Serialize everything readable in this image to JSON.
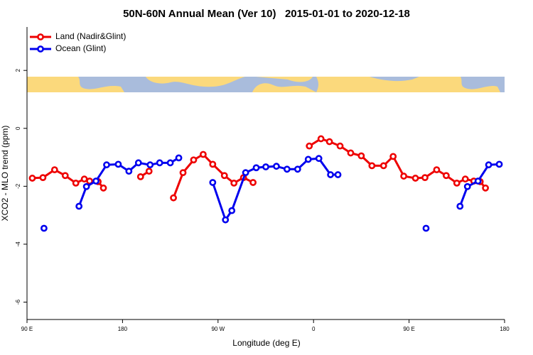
{
  "chart_data": {
    "type": "line",
    "title": "50N-60N Annual Mean (Ver 10)   2015-01-01 to 2020-12-18",
    "x_label": "Longitude (deg E)",
    "y_label": "XCO2 - MLO trend (ppm)",
    "xlim": [
      90,
      540
    ],
    "ylim": [
      -6.6,
      3.5
    ],
    "xticks": [
      {
        "value": 90,
        "label": "90 E"
      },
      180,
      {
        "value": 270,
        "label": "90 W"
      },
      {
        "value": 360,
        "label": "0"
      },
      {
        "value": 450,
        "label": "90 E"
      },
      {
        "value": 540,
        "label": "180"
      }
    ],
    "yticks": [
      -6,
      -4,
      -2,
      0,
      2
    ],
    "legend": "top-left",
    "series": [
      {
        "name": "Land (Nadir&Glint)",
        "color": "#ee0000",
        "x": [
          95,
          105,
          116,
          126,
          136,
          144,
          149,
          157,
          162,
          null,
          197,
          205,
          null,
          228,
          237,
          247,
          256,
          265,
          276,
          285,
          294,
          303,
          null,
          356,
          367,
          375,
          385,
          395,
          405,
          415,
          426,
          435,
          445,
          456,
          465,
          476,
          485,
          495,
          503,
          511,
          517,
          522
        ],
        "values": [
          -1.72,
          -1.7,
          -1.43,
          -1.63,
          -1.89,
          -1.75,
          -1.82,
          -1.84,
          -2.06,
          null,
          -1.67,
          -1.48,
          null,
          -2.4,
          -1.53,
          -1.09,
          -0.9,
          -1.24,
          -1.63,
          -1.89,
          -1.7,
          -1.87,
          null,
          -0.61,
          -0.36,
          -0.46,
          -0.61,
          -0.85,
          -0.95,
          -1.29,
          -1.29,
          -0.97,
          -1.65,
          -1.72,
          -1.7,
          -1.43,
          -1.63,
          -1.89,
          -1.75,
          -1.82,
          -1.84,
          -2.06
        ]
      },
      {
        "name": "Ocean (Glint)",
        "color": "#0000ee",
        "x": [
          106,
          null,
          139,
          146,
          155,
          165,
          176,
          186,
          195,
          206,
          215,
          225,
          233,
          null,
          265,
          277,
          283,
          296,
          306,
          315,
          325,
          335,
          345,
          355,
          365,
          376,
          383,
          null,
          466,
          null,
          498,
          505,
          515,
          525,
          535
        ],
        "values": [
          -3.45,
          null,
          -2.69,
          -2.01,
          -1.82,
          -1.26,
          -1.24,
          -1.48,
          -1.19,
          -1.26,
          -1.19,
          -1.19,
          -1.02,
          null,
          -1.87,
          -3.16,
          -2.84,
          -1.53,
          -1.36,
          -1.33,
          -1.31,
          -1.41,
          -1.41,
          -1.07,
          -1.04,
          -1.6,
          -1.6,
          null,
          -3.45,
          null,
          -2.69,
          -2.01,
          -1.82,
          -1.26,
          -1.24
        ]
      }
    ]
  }
}
